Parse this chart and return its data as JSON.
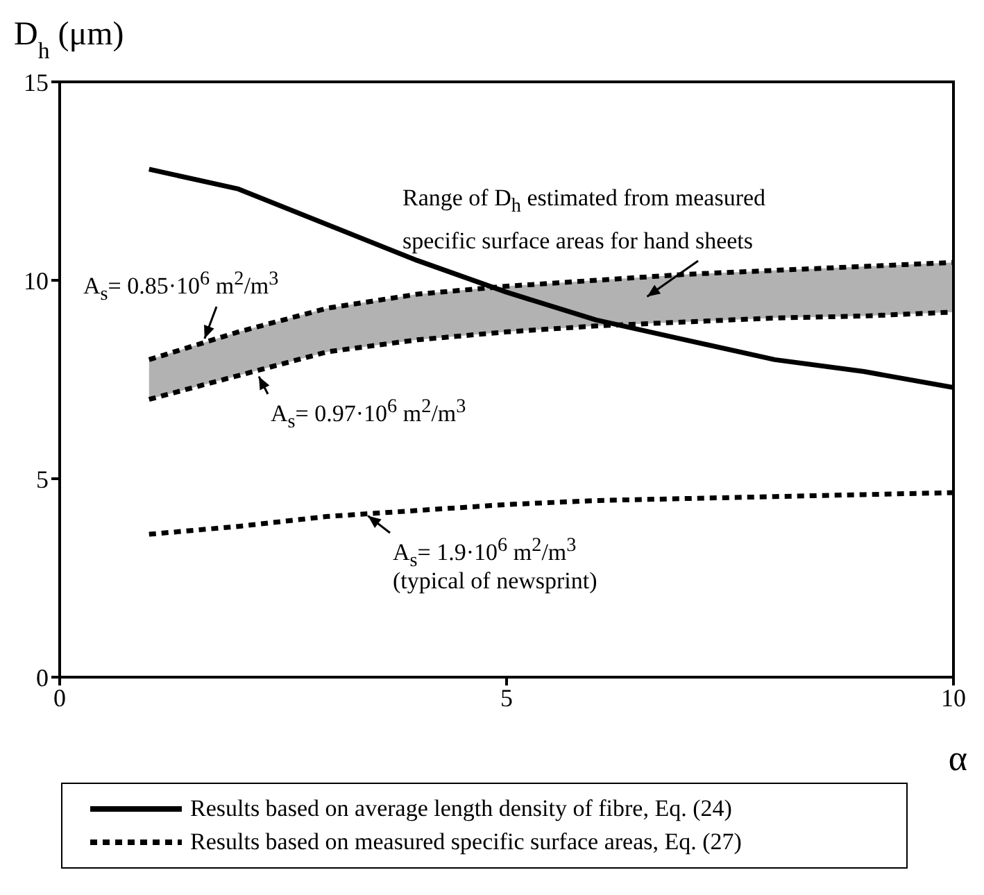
{
  "chart_data": {
    "type": "line",
    "xlabel": "α",
    "ylabel": "D$_{h}$ (μm)",
    "x": [
      1,
      2,
      3,
      4,
      5,
      6,
      7,
      8,
      9,
      10
    ],
    "xlim": [
      0,
      10
    ],
    "xticks": [
      0,
      5,
      10
    ],
    "ylim": [
      0,
      15
    ],
    "yticks": [
      0,
      5,
      10,
      15
    ],
    "series": [
      {
        "name": "Results based on average length density of fibre, Eq. (24)",
        "color": "#000000",
        "line_style": "solid",
        "values": [
          12.8,
          12.3,
          11.4,
          10.5,
          9.7,
          9.0,
          8.5,
          8.0,
          7.7,
          7.3
        ]
      },
      {
        "color": "#000000",
        "line_style": "dashed",
        "values": [
          8.0,
          8.7,
          9.3,
          9.65,
          9.85,
          10.0,
          10.15,
          10.25,
          10.35,
          10.45
        ],
        "lower": [
          7.0,
          7.6,
          8.2,
          8.5,
          8.7,
          8.85,
          8.95,
          9.05,
          9.1,
          9.2
        ],
        "upper": [
          8.0,
          8.7,
          9.3,
          9.65,
          9.85,
          10.0,
          10.15,
          10.25,
          10.35,
          10.45
        ]
      },
      {
        "color": "#000000",
        "line_style": "dashed",
        "values": [
          7.0,
          7.6,
          8.2,
          8.5,
          8.7,
          8.85,
          8.95,
          9.05,
          9.1,
          9.2
        ]
      },
      {
        "name": "Results based on measured specific surface areas, Eq. (27)",
        "color": "#000000",
        "line_style": "dashed",
        "values": [
          3.6,
          3.8,
          4.05,
          4.2,
          4.35,
          4.45,
          4.5,
          4.55,
          4.6,
          4.65
        ]
      }
    ],
    "annotations": [
      "Range of D$_{h}$ estimated from measured specific surface areas for hand sheets",
      {
        "text": "A$_{s}$= 0.85·10$^{6}$ m$^{2}$/m$^{3}$",
        "x": 1.6,
        "y": 8.4
      },
      {
        "text": "A$_{s}$= 0.97·10$^{6}$ m$^{2}$/m$^{3}$",
        "x": 2.2,
        "y": 7.7
      },
      {
        "text": "A$_{s}$= 1.9·10$^{6}$ m$^{2}$/m$^{3}$",
        "x": 3.4,
        "y": 4.15
      },
      "(typical of newsprint)"
    ],
    "legend": "bottom",
    "grid": false
  }
}
